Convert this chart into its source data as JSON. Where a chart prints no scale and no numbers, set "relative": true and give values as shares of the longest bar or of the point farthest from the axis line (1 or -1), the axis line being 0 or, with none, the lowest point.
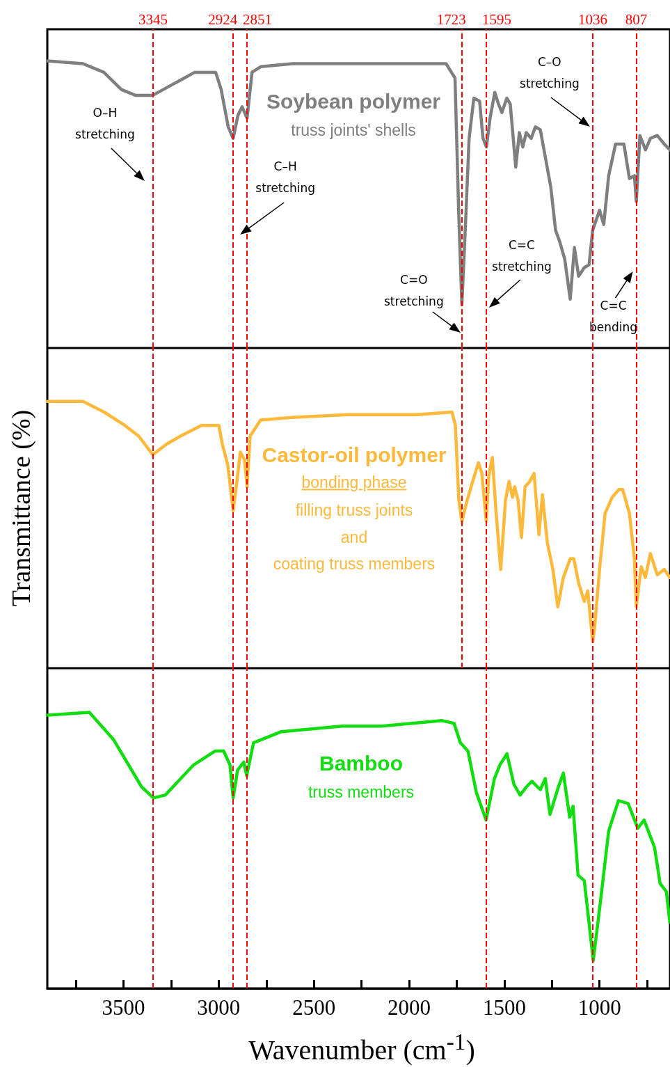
{
  "chart_data": [
    {
      "type": "line",
      "relative": true,
      "title": "Soybean polymer",
      "subtitle": "truss joints' shells",
      "xlim": [
        3900,
        630
      ],
      "tick_labels": false,
      "marker": "none",
      "x": [
        3900,
        3713,
        3603,
        3511,
        3438,
        3346,
        3236,
        3126,
        3016,
        2987,
        2950,
        2924,
        2899,
        2877,
        2851,
        2825,
        2778,
        2613,
        2320,
        1953,
        1806,
        1759,
        1740,
        1723,
        1704,
        1685,
        1660,
        1630,
        1612,
        1594,
        1575,
        1550,
        1531,
        1513,
        1487,
        1469,
        1440,
        1421,
        1403,
        1385,
        1359,
        1337,
        1311,
        1256,
        1231,
        1209,
        1183,
        1154,
        1132,
        1110,
        1080,
        1055,
        1036,
        1000,
        978,
        952,
        916,
        872,
        843,
        817,
        807,
        788,
        759,
        733,
        697,
        660,
        631
      ],
      "series": [
        {
          "color": "#7f7f7f",
          "values": [
            1.0,
            0.99,
            0.96,
            0.9,
            0.88,
            0.88,
            0.92,
            0.96,
            0.96,
            0.9,
            0.77,
            0.73,
            0.81,
            0.84,
            0.8,
            0.96,
            0.98,
            0.99,
            0.99,
            0.99,
            0.99,
            0.94,
            0.48,
            0.15,
            0.43,
            0.73,
            0.87,
            0.86,
            0.73,
            0.7,
            0.8,
            0.89,
            0.85,
            0.82,
            0.87,
            0.85,
            0.63,
            0.75,
            0.7,
            0.75,
            0.73,
            0.77,
            0.76,
            0.56,
            0.41,
            0.37,
            0.31,
            0.17,
            0.35,
            0.25,
            0.28,
            0.29,
            0.41,
            0.48,
            0.43,
            0.6,
            0.71,
            0.71,
            0.59,
            0.6,
            0.51,
            0.74,
            0.69,
            0.73,
            0.74,
            0.71,
            0.69
          ]
        }
      ],
      "ref_lines": [
        {
          "axis": "x",
          "value": 3345,
          "label": "3345",
          "color": "#ff0000",
          "line_style": "dashed"
        },
        {
          "axis": "x",
          "value": 2924,
          "label": "2924",
          "color": "#ff0000",
          "line_style": "dashed"
        },
        {
          "axis": "x",
          "value": 2851,
          "label": "2851",
          "color": "#ff0000",
          "line_style": "dashed"
        },
        {
          "axis": "x",
          "value": 1723,
          "label": "1723",
          "color": "#ff0000",
          "line_style": "dashed"
        },
        {
          "axis": "x",
          "value": 1595,
          "label": "1595",
          "color": "#ff0000",
          "line_style": "dashed"
        },
        {
          "axis": "x",
          "value": 1036,
          "label": "1036",
          "color": "#ff0000",
          "line_style": "dashed"
        },
        {
          "axis": "x",
          "value": 807,
          "label": "807",
          "color": "#ff0000",
          "line_style": "dashed"
        }
      ],
      "annotations": [
        {
          "text": "O–H stretching",
          "x": 3345
        },
        {
          "text": "C–H stretching",
          "x": 2851
        },
        {
          "text": "C=O stretching",
          "x": 1723
        },
        {
          "text": "C=C stretching",
          "x": 1595
        },
        {
          "text": "C–O stretching",
          "x": 1036
        },
        {
          "text": "C=C bending",
          "x": 807
        }
      ]
    },
    {
      "type": "line",
      "relative": true,
      "title": "Castor-oil polymer",
      "subtitle": "bonding phase",
      "ylabel": "Transmittance (%)",
      "xlim": [
        3900,
        630
      ],
      "tick_labels": false,
      "marker": "none",
      "x": [
        3900,
        3712,
        3602,
        3493,
        3420,
        3346,
        3273,
        3200,
        3091,
        2999,
        2981,
        2952,
        2924,
        2908,
        2886,
        2864,
        2851,
        2835,
        2780,
        2615,
        2323,
        1958,
        1775,
        1757,
        1739,
        1723,
        1695,
        1666,
        1636,
        1618,
        1595,
        1582,
        1563,
        1545,
        1519,
        1494,
        1475,
        1457,
        1446,
        1428,
        1410,
        1391,
        1366,
        1344,
        1318,
        1300,
        1274,
        1245,
        1219,
        1190,
        1154,
        1135,
        1110,
        1080,
        1062,
        1036,
        1026,
        1000,
        971,
        934,
        898,
        879,
        843,
        817,
        807,
        781,
        759,
        733,
        697,
        660,
        631
      ],
      "series": [
        {
          "color": "#fdb93b",
          "values": [
            1.0,
            1.0,
            0.96,
            0.91,
            0.87,
            0.8,
            0.84,
            0.87,
            0.91,
            0.91,
            0.84,
            0.76,
            0.59,
            0.68,
            0.81,
            0.78,
            0.68,
            0.87,
            0.93,
            0.94,
            0.95,
            0.95,
            0.96,
            0.91,
            0.63,
            0.55,
            0.63,
            0.7,
            0.77,
            0.73,
            0.55,
            0.72,
            0.79,
            0.6,
            0.37,
            0.63,
            0.7,
            0.64,
            0.68,
            0.63,
            0.49,
            0.68,
            0.7,
            0.73,
            0.5,
            0.65,
            0.47,
            0.37,
            0.23,
            0.34,
            0.41,
            0.41,
            0.32,
            0.25,
            0.29,
            0.1,
            0.15,
            0.37,
            0.58,
            0.64,
            0.67,
            0.67,
            0.58,
            0.41,
            0.23,
            0.38,
            0.34,
            0.43,
            0.35,
            0.37,
            0.34
          ]
        }
      ],
      "ref_lines": [
        {
          "axis": "x",
          "value": 3345,
          "color": "#ff0000",
          "line_style": "dashed"
        },
        {
          "axis": "x",
          "value": 2924,
          "color": "#ff0000",
          "line_style": "dashed"
        },
        {
          "axis": "x",
          "value": 2851,
          "color": "#ff0000",
          "line_style": "dashed"
        },
        {
          "axis": "x",
          "value": 1723,
          "color": "#ff0000",
          "line_style": "dashed"
        },
        {
          "axis": "x",
          "value": 1595,
          "color": "#ff0000",
          "line_style": "dashed"
        },
        {
          "axis": "x",
          "value": 1036,
          "color": "#ff0000",
          "line_style": "dashed"
        },
        {
          "axis": "x",
          "value": 807,
          "color": "#ff0000",
          "line_style": "dashed"
        }
      ],
      "annotations": [
        "filling truss joints",
        "and",
        "coating truss members"
      ]
    },
    {
      "type": "line",
      "relative": true,
      "title": "Bamboo",
      "subtitle": "truss members",
      "xlabel": "Wavenumber (cm$^{-1}$)",
      "xlim": [
        3900,
        630
      ],
      "marker": "none",
      "xticks": [
        {
          "value": 3750,
          "label": null
        },
        3500,
        {
          "value": 3250,
          "label": null
        },
        3000,
        {
          "value": 2750,
          "label": null
        },
        2500,
        {
          "value": 2250,
          "label": null
        },
        2000,
        {
          "value": 1750,
          "label": null
        },
        1500,
        {
          "value": 1250,
          "label": null
        },
        1000,
        {
          "value": 750,
          "label": null
        }
      ],
      "x": [
        3900,
        3679,
        3551,
        3405,
        3343,
        3281,
        3131,
        3018,
        2974,
        2941,
        2924,
        2901,
        2868,
        2853,
        2817,
        2670,
        2352,
        2144,
        1826,
        1764,
        1731,
        1691,
        1647,
        1596,
        1552,
        1523,
        1486,
        1450,
        1417,
        1384,
        1355,
        1311,
        1285,
        1260,
        1216,
        1190,
        1157,
        1139,
        1113,
        1080,
        1033,
        996,
        952,
        901,
        850,
        799,
        766,
        711,
        682,
        649,
        631
      ],
      "series": [
        {
          "color": "#11dd11",
          "values": [
            0.99,
            1.0,
            0.9,
            0.73,
            0.69,
            0.7,
            0.81,
            0.86,
            0.86,
            0.81,
            0.69,
            0.79,
            0.82,
            0.77,
            0.89,
            0.93,
            0.95,
            0.95,
            0.97,
            0.96,
            0.89,
            0.86,
            0.71,
            0.61,
            0.76,
            0.81,
            0.85,
            0.74,
            0.7,
            0.73,
            0.75,
            0.72,
            0.76,
            0.63,
            0.73,
            0.78,
            0.62,
            0.66,
            0.41,
            0.39,
            0.1,
            0.31,
            0.57,
            0.68,
            0.67,
            0.58,
            0.61,
            0.51,
            0.38,
            0.35,
            0.24
          ]
        }
      ],
      "ref_lines": [
        {
          "axis": "x",
          "value": 3345,
          "color": "#ff0000",
          "line_style": "dashed"
        },
        {
          "axis": "x",
          "value": 2924,
          "color": "#ff0000",
          "line_style": "dashed"
        },
        {
          "axis": "x",
          "value": 2851,
          "color": "#ff0000",
          "line_style": "dashed"
        },
        {
          "axis": "x",
          "value": 1595,
          "color": "#ff0000",
          "line_style": "dashed"
        },
        {
          "axis": "x",
          "value": 1036,
          "color": "#ff0000",
          "line_style": "dashed"
        },
        {
          "axis": "x",
          "value": 807,
          "color": "#ff0000",
          "line_style": "dashed"
        }
      ]
    }
  ]
}
